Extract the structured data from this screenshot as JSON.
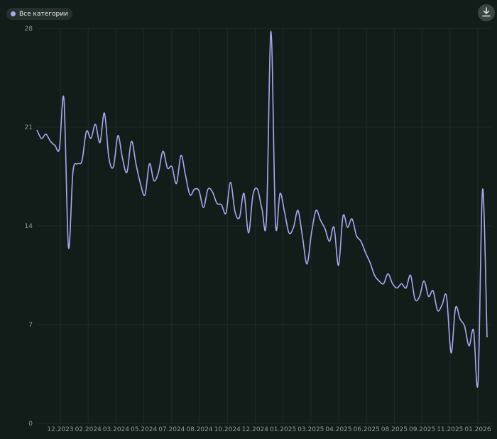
{
  "legend": {
    "label": "Все категории",
    "color": "#a9a9f3"
  },
  "toolbar": {
    "download_icon": "download-icon"
  },
  "colors": {
    "background": "#121d1a",
    "grid": "#1f2b27",
    "line": "#a9a9f3",
    "tick_text": "#8f9995"
  },
  "chart_data": {
    "type": "line",
    "title": "",
    "xlabel": "",
    "ylabel": "",
    "ylim": [
      0,
      28
    ],
    "y_ticks": [
      0,
      7,
      14,
      21,
      28
    ],
    "x_tick_labels": [
      "12.2023",
      "02.2024",
      "03.2024",
      "05.2024",
      "07.2024",
      "08.2024",
      "10.2024",
      "12.2024",
      "01.2025",
      "03.2025",
      "04.2025",
      "06.2025",
      "08.2025",
      "09.2025",
      "11.2025",
      "01.2026"
    ],
    "grid": true,
    "legend_position": "top-left",
    "series": [
      {
        "name": "Все категории",
        "values": [
          20.8,
          20.2,
          20.5,
          20.0,
          19.7,
          19.5,
          23.0,
          12.5,
          17.8,
          18.4,
          18.6,
          20.7,
          20.2,
          21.2,
          19.9,
          22.0,
          18.8,
          18.2,
          20.4,
          18.8,
          17.8,
          20.0,
          18.4,
          17.0,
          16.2,
          18.4,
          17.2,
          17.8,
          19.3,
          18.1,
          18.2,
          17.0,
          19.0,
          17.6,
          16.2,
          16.6,
          16.5,
          15.3,
          16.6,
          16.4,
          15.6,
          15.5,
          14.9,
          17.1,
          15.0,
          14.6,
          16.3,
          13.5,
          16.2,
          16.6,
          15.2,
          14.5,
          27.8,
          14.2,
          16.3,
          15.0,
          13.5,
          13.9,
          15.1,
          13.2,
          11.3,
          13.5,
          15.1,
          14.4,
          13.8,
          12.9,
          13.9,
          11.2,
          14.7,
          13.9,
          14.5,
          13.3,
          12.9,
          12.1,
          11.4,
          10.5,
          10.1,
          9.9,
          10.6,
          9.9,
          9.6,
          9.9,
          9.6,
          10.5,
          8.8,
          9.0,
          10.1,
          9.0,
          9.4,
          8.0,
          8.4,
          9.0,
          5.0,
          8.2,
          7.4,
          6.9,
          5.5,
          6.6,
          2.9,
          16.6,
          6.1
        ]
      }
    ]
  }
}
